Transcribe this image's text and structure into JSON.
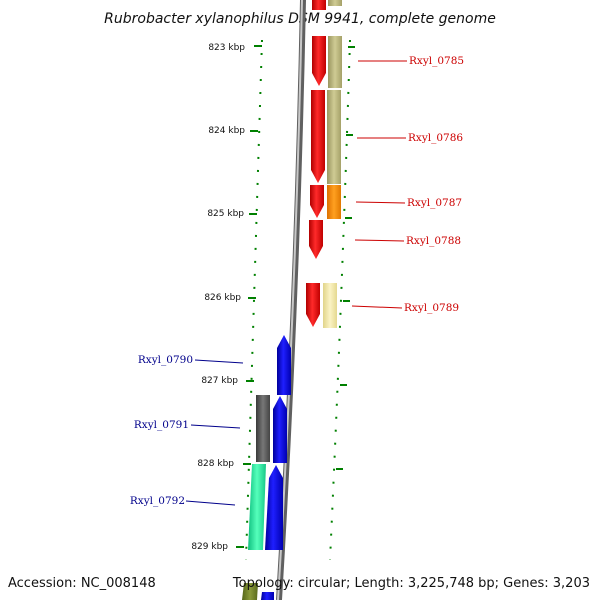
{
  "title": "Rubrobacter xylanophilus DSM 9941, complete genome",
  "accession": "Accession: NC_008148",
  "topology": "Topology: circular; Length: 3,225,748 bp; Genes: 3,203",
  "colors": {
    "forward_label": "#cc0000",
    "reverse_label": "#00008b",
    "red_gene": "#ff0000",
    "blue_gene": "#0000ff",
    "olive_feature": "#b6b27a",
    "orange_feature": "#ff8c00",
    "light_yellow_feature": "#f2e6a0",
    "gray_feature": "#555555",
    "teal_feature": "#22dd99",
    "dark_green_feature": "#667722",
    "tick_green": "#008000",
    "backbone": "#808080"
  },
  "scale_ticks": [
    {
      "label": "823 kbp"
    },
    {
      "label": "824 kbp"
    },
    {
      "label": "825 kbp"
    },
    {
      "label": "826 kbp"
    },
    {
      "label": "827 kbp"
    },
    {
      "label": "828 kbp"
    },
    {
      "label": "829 kbp"
    }
  ],
  "gene_labels": [
    {
      "text": "Rxyl_0785",
      "strand": "forward"
    },
    {
      "text": "Rxyl_0786",
      "strand": "forward"
    },
    {
      "text": "Rxyl_0787",
      "strand": "forward"
    },
    {
      "text": "Rxyl_0788",
      "strand": "forward"
    },
    {
      "text": "Rxyl_0789",
      "strand": "forward"
    },
    {
      "text": "Rxyl_0790",
      "strand": "reverse"
    },
    {
      "text": "Rxyl_0791",
      "strand": "reverse"
    },
    {
      "text": "Rxyl_0792",
      "strand": "reverse"
    }
  ]
}
